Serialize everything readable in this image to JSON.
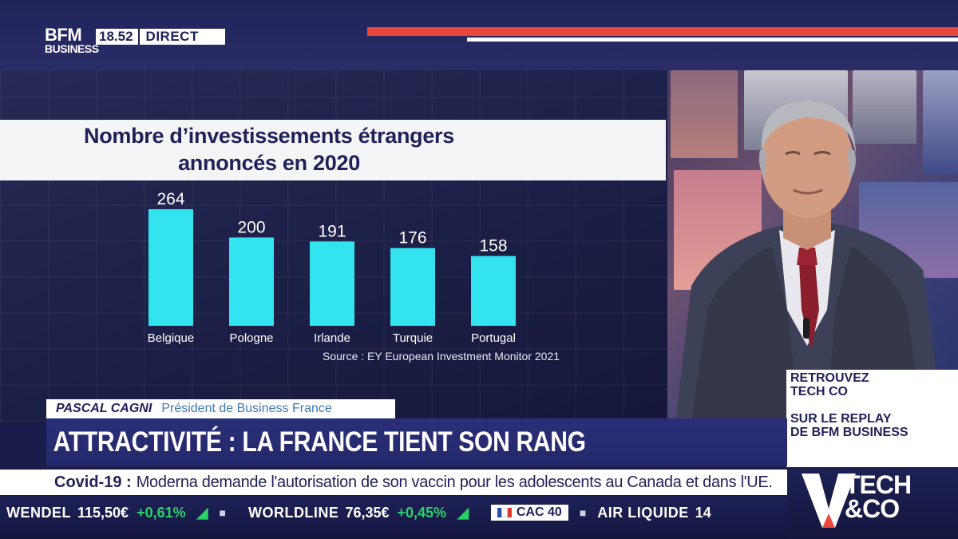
{
  "header": {
    "logo_line1": "BFM",
    "logo_line2": "BUSINESS",
    "time": "18.52",
    "live_label": "DIRECT"
  },
  "chart_data": {
    "type": "bar",
    "title_line1": "Nombre d’investissements étrangers",
    "title_line2": "annoncés en 2020",
    "categories": [
      "Belgique",
      "Pologne",
      "Irlande",
      "Turquie",
      "Portugal"
    ],
    "values": [
      264,
      200,
      191,
      176,
      158
    ],
    "value_labels": [
      "264",
      "200",
      "191",
      "176",
      "158"
    ],
    "source": "Source : EY European Investment Monitor 2021",
    "bar_color": "#33e3f0",
    "ylim": [
      0,
      264
    ],
    "grid": false,
    "xlabel": "",
    "ylabel": ""
  },
  "side_panel": {
    "line1": "RETROUVEZ",
    "line2": "TECH CO",
    "line3": "SUR LE REPLAY",
    "line4": "DE BFM BUSINESS"
  },
  "lower_third": {
    "name": "PASCAL CAGNI",
    "role": "Président de Business France",
    "headline": "ATTRACTIVITÉ : LA FRANCE TIENT SON RANG"
  },
  "news": {
    "tag": "Covid-19 :",
    "text": "Moderna demande l'autorisation de son vaccin pour les adolescents au Canada et dans l'UE."
  },
  "ticker": {
    "items": [
      {
        "name": "WENDEL",
        "value": "115,50€",
        "change": "+0,61%"
      },
      {
        "name": "WORLDLINE",
        "value": "76,35€",
        "change": "+0,45%"
      }
    ],
    "index_label": "CAC 40",
    "last_name": "AIR LIQUIDE",
    "last_value": "14"
  },
  "program_logo": {
    "line1": "TECH",
    "line2": "&CO"
  },
  "colors": {
    "brand_navy": "#1f2157",
    "accent_red": "#e8473c",
    "bar_cyan": "#33e3f0",
    "ticker_green": "#2bd06a"
  }
}
